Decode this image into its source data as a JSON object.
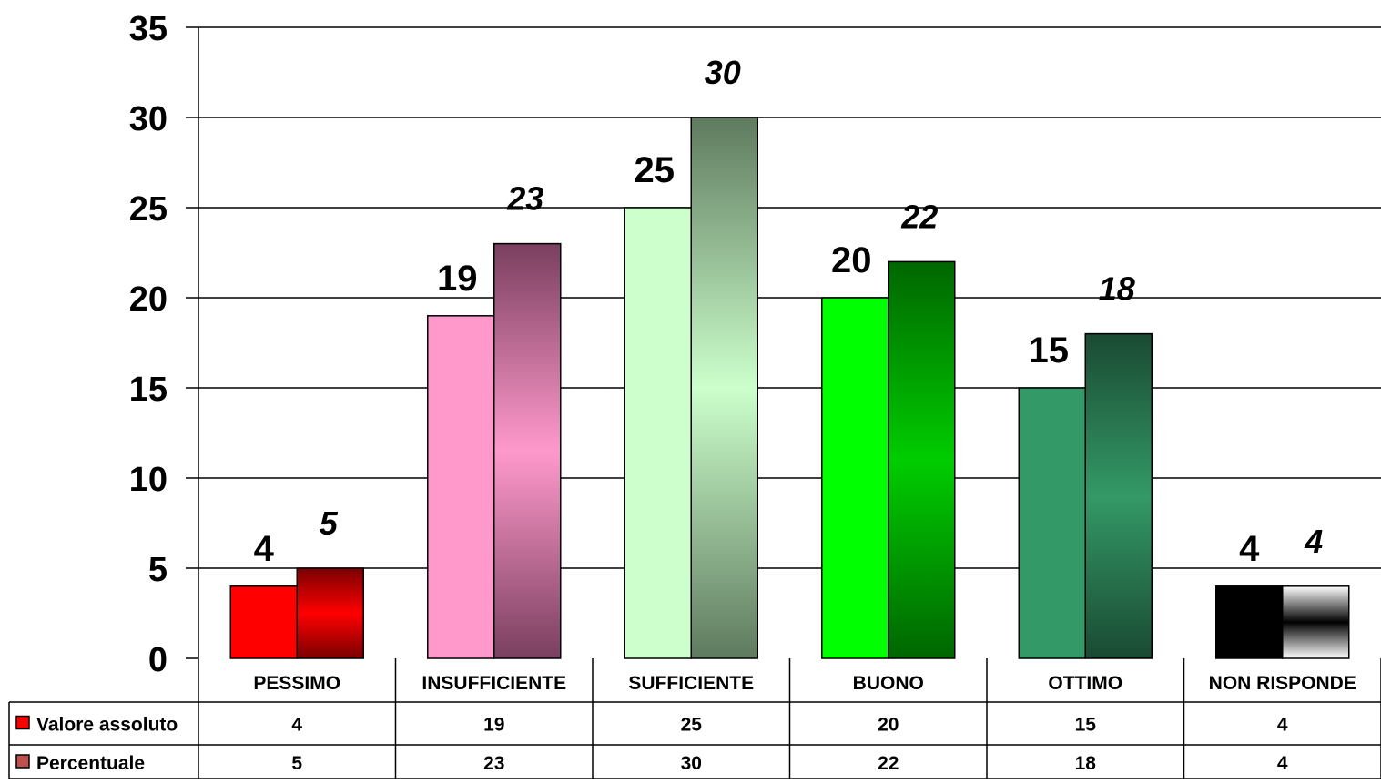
{
  "chart_data": {
    "type": "bar",
    "title": "",
    "xlabel": "",
    "ylabel": "",
    "ylim": [
      0,
      35
    ],
    "y_ticks": [
      0,
      5,
      10,
      15,
      20,
      25,
      30,
      35
    ],
    "grid": true,
    "categories": [
      "PESSIMO",
      "INSUFFICIENTE",
      "SUFFICIENTE",
      "BUONO",
      "OTTIMO",
      "NON RISPONDE"
    ],
    "series": [
      {
        "name": "Valore assoluto",
        "values": [
          4,
          19,
          25,
          20,
          15,
          4
        ],
        "colors": [
          "#ff0000",
          "#ff99cc",
          "#ccffcc",
          "#00ff00",
          "#339966",
          "#000000"
        ],
        "legend_color": "#ff0000"
      },
      {
        "name": "Percentuale",
        "values": [
          5,
          23,
          30,
          22,
          18,
          4
        ],
        "gradients": [
          [
            "#7a0000",
            "#ff0000",
            "#7a0000"
          ],
          [
            "#7a3f5f",
            "#ff99cc",
            "#7a3f5f"
          ],
          [
            "#5f7a5f",
            "#ccffcc",
            "#5f7a5f"
          ],
          [
            "#006600",
            "#00cc00",
            "#006600"
          ],
          [
            "#1a4a33",
            "#339966",
            "#1a4a33"
          ],
          [
            "#ffffff",
            "#000000",
            "#ffffff"
          ]
        ],
        "legend_color": "#c0504d",
        "label_style": "italic"
      }
    ],
    "legend_placement": "data-table-left"
  }
}
